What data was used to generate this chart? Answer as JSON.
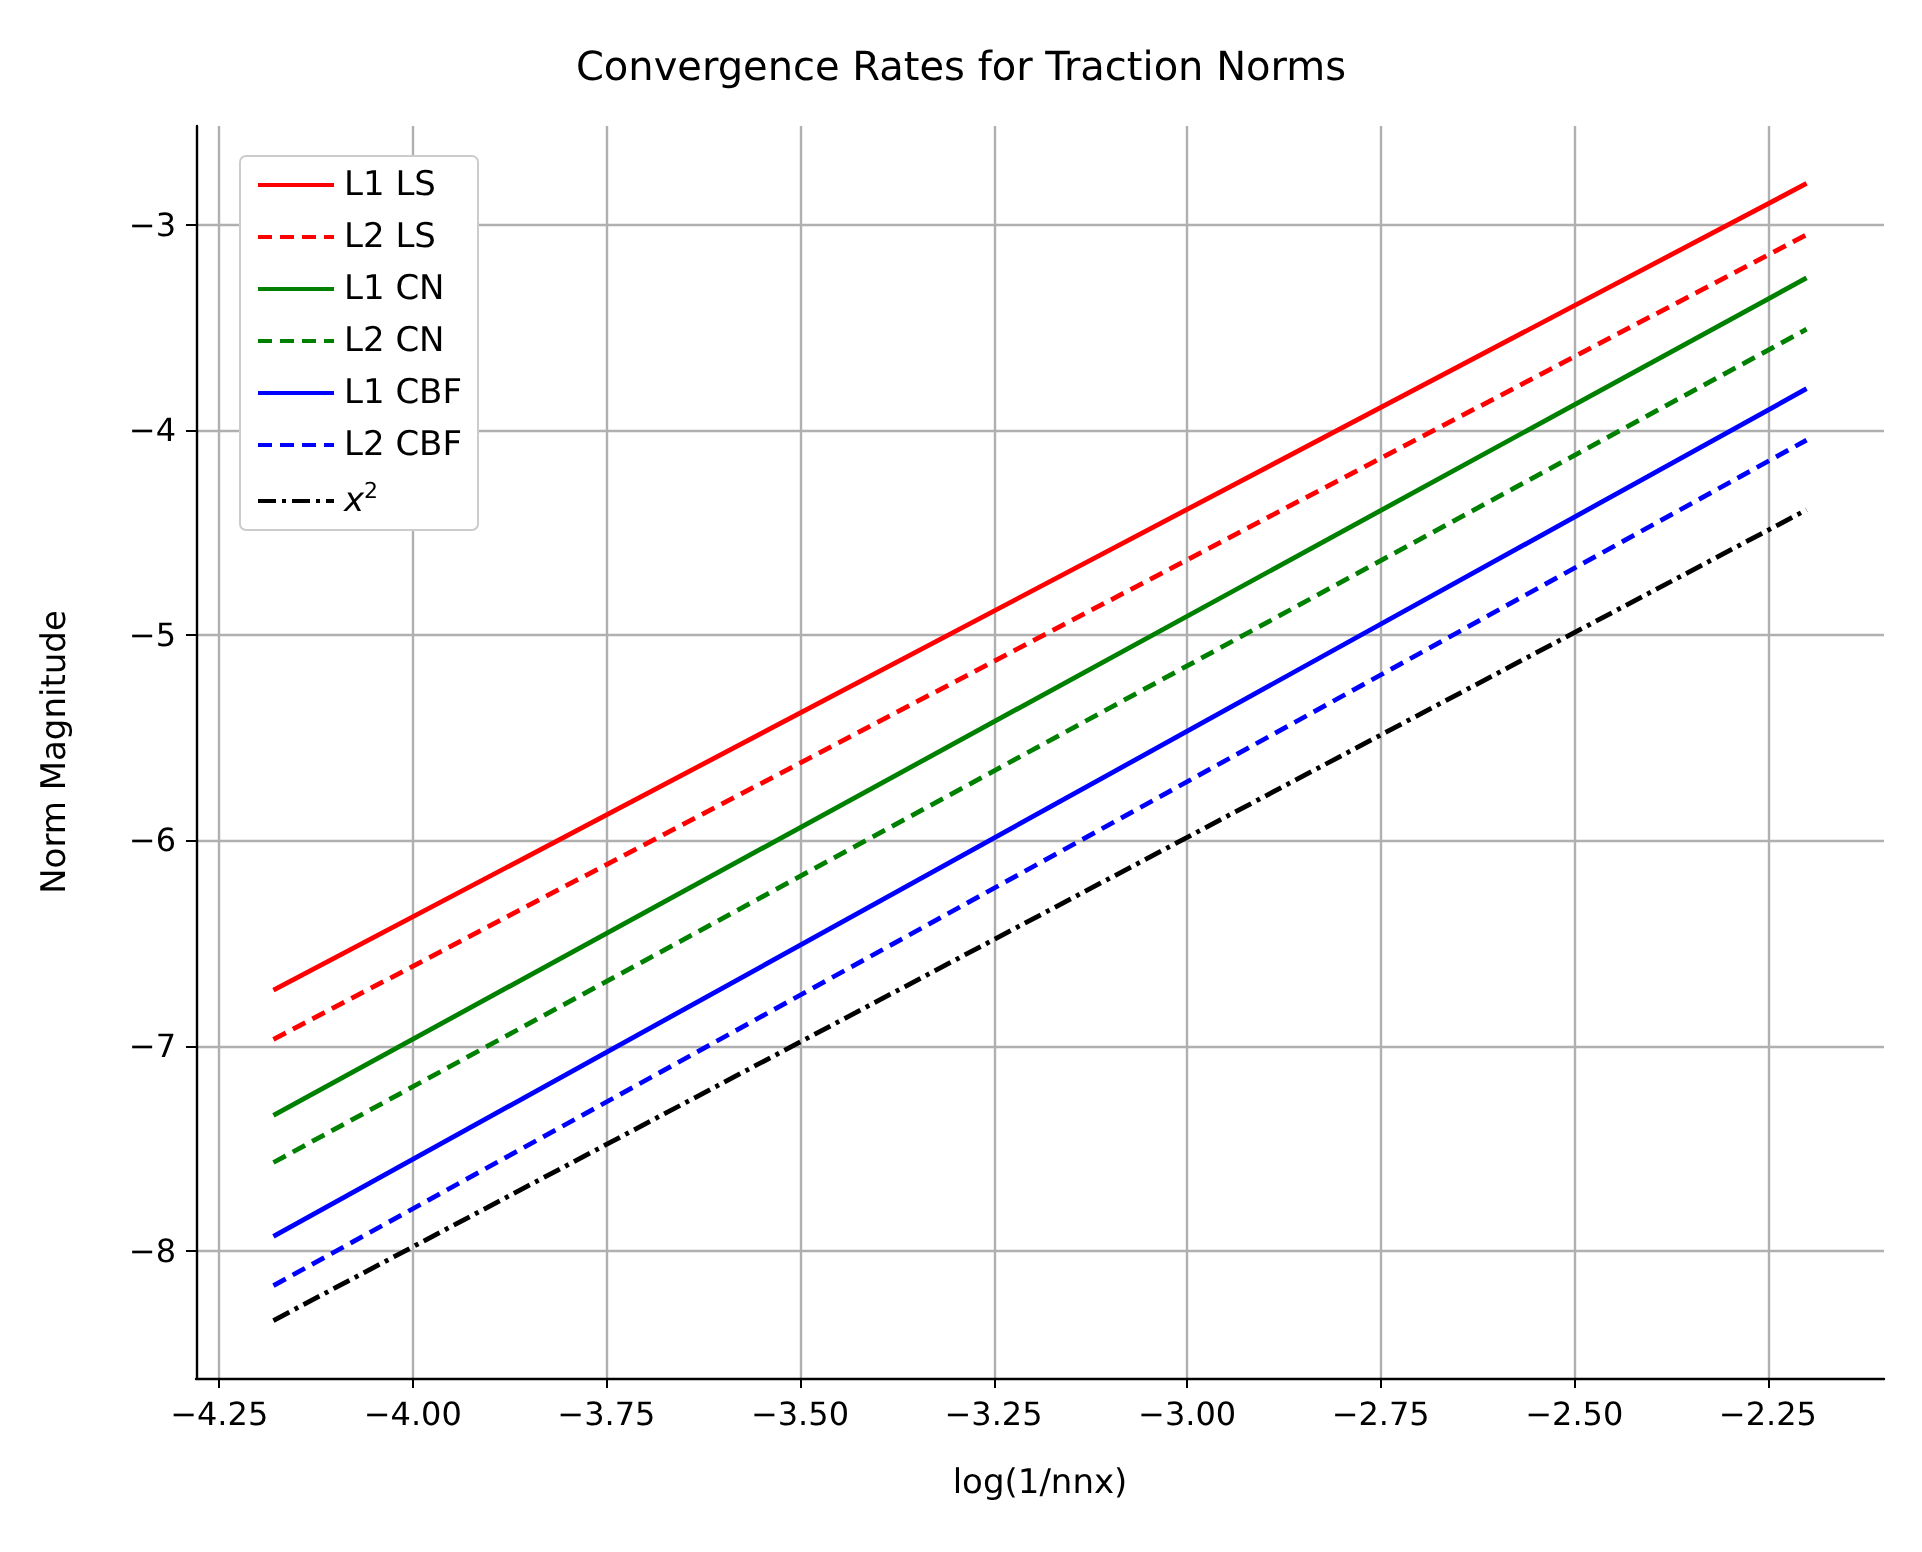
{
  "chart_data": {
    "type": "line",
    "title": "Convergence Rates for Traction Norms",
    "xlabel": "log(1/nnx)",
    "ylabel": "Norm Magnitude",
    "x": [
      -4.18,
      -2.2
    ],
    "series": [
      {
        "name": "L1 LS",
        "color": "#ff0000",
        "line_style": "solid",
        "values": [
          -6.73,
          -2.8
        ]
      },
      {
        "name": "L2 LS",
        "color": "#ff0000",
        "line_style": "dashed",
        "values": [
          -6.97,
          -3.05
        ]
      },
      {
        "name": "L1 CN",
        "color": "#008000",
        "line_style": "solid",
        "values": [
          -7.34,
          -3.26
        ]
      },
      {
        "name": "L2 CN",
        "color": "#008000",
        "line_style": "dashed",
        "values": [
          -7.57,
          -3.51
        ]
      },
      {
        "name": "L1 CBF",
        "color": "#0000ff",
        "line_style": "solid",
        "values": [
          -7.93,
          -3.8
        ]
      },
      {
        "name": "L2 CBF",
        "color": "#0000ff",
        "line_style": "dashed",
        "values": [
          -8.17,
          -4.05
        ]
      },
      {
        "name": "x$^{2}$",
        "color": "#000000",
        "line_style": "dashdot",
        "values": [
          -8.34,
          -4.39
        ]
      }
    ],
    "xlim": [
      -4.28,
      -2.1
    ],
    "ylim": [
      -8.62,
      -2.52
    ],
    "xticks": [
      {
        "value": -4.25,
        "label": "−4.25"
      },
      {
        "value": -4,
        "label": "−4.00"
      },
      {
        "value": -3.75,
        "label": "−3.75"
      },
      {
        "value": -3.5,
        "label": "−3.50"
      },
      {
        "value": -3.25,
        "label": "−3.25"
      },
      {
        "value": -3,
        "label": "−3.00"
      },
      {
        "value": -2.75,
        "label": "−2.75"
      },
      {
        "value": -2.5,
        "label": "−2.50"
      },
      {
        "value": -2.25,
        "label": "−2.25"
      }
    ],
    "yticks": [
      {
        "value": -8,
        "label": "−8"
      },
      {
        "value": -7,
        "label": "−7"
      },
      {
        "value": -6,
        "label": "−6"
      },
      {
        "value": -5,
        "label": "−5"
      },
      {
        "value": -4,
        "label": "−4"
      },
      {
        "value": -3,
        "label": "−3"
      }
    ],
    "grid": true,
    "legend": "top left",
    "marker": "none"
  }
}
